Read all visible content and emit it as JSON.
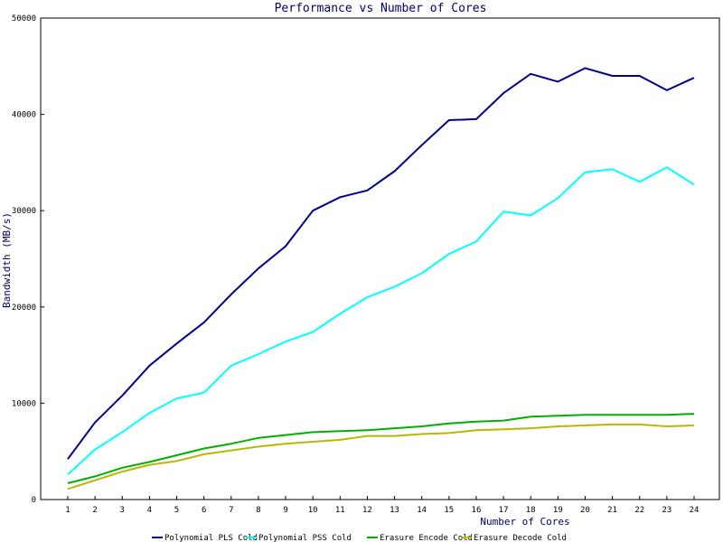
{
  "chart_data": {
    "type": "line",
    "title": "Performance vs Number of Cores",
    "xlabel": "Number of Cores",
    "ylabel": "Bandwidth (MB/s)",
    "ylim": [
      0,
      50000
    ],
    "yticks": [
      0,
      10000,
      20000,
      30000,
      40000,
      50000
    ],
    "x": [
      1,
      2,
      3,
      4,
      5,
      6,
      7,
      8,
      9,
      10,
      11,
      12,
      13,
      14,
      15,
      16,
      17,
      18,
      19,
      20,
      21,
      22,
      23,
      24
    ],
    "legend_position": "bottom",
    "grid": false,
    "series": [
      {
        "name": "Polynomial PLS Cold",
        "color": "#00008b",
        "values": [
          4200,
          8000,
          10800,
          13900,
          16200,
          18400,
          21300,
          24000,
          26300,
          30000,
          31400,
          32100,
          34100,
          36800,
          39400,
          39500,
          42200,
          44200,
          43400,
          44800,
          44000,
          44000,
          42500,
          43800
        ]
      },
      {
        "name": "Polynomial PSS Cold",
        "color": "#00ffff",
        "values": [
          2600,
          5200,
          7000,
          9000,
          10500,
          11100,
          13900,
          15100,
          16400,
          17400,
          19300,
          21000,
          22100,
          23500,
          25500,
          26800,
          29900,
          29500,
          31300,
          34000,
          34300,
          33000,
          34500,
          32700
        ]
      },
      {
        "name": "Erasure Encode Cold",
        "color": "#00b000",
        "values": [
          1700,
          2400,
          3300,
          3900,
          4600,
          5300,
          5800,
          6400,
          6700,
          7000,
          7100,
          7200,
          7400,
          7600,
          7900,
          8100,
          8200,
          8600,
          8700,
          8800,
          8800,
          8800,
          8800,
          8900
        ]
      },
      {
        "name": "Erasure Decode Cold",
        "color": "#b8b800",
        "values": [
          1100,
          2000,
          2900,
          3600,
          4000,
          4700,
          5100,
          5500,
          5800,
          6000,
          6200,
          6600,
          6600,
          6800,
          6900,
          7200,
          7300,
          7400,
          7600,
          7700,
          7800,
          7800,
          7600,
          7700
        ]
      }
    ]
  }
}
